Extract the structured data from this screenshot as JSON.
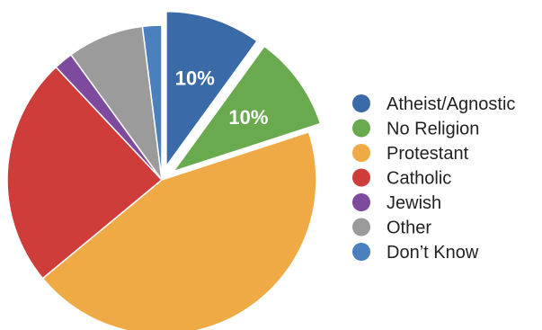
{
  "chart_data": {
    "type": "pie",
    "categories": [
      "Atheist/Agnostic",
      "No Religion",
      "Protestant",
      "Catholic",
      "Jewish",
      "Other",
      "Don't Know"
    ],
    "values": [
      10,
      10,
      44,
      24,
      2,
      8,
      2
    ],
    "colors": [
      "#3b6aa8",
      "#6aaa4f",
      "#efaa45",
      "#cf3d3b",
      "#7e4a9d",
      "#9b9b9b",
      "#4a80bd"
    ],
    "exploded": [
      "Atheist/Agnostic",
      "No Religion"
    ],
    "data_labels": [
      "10%",
      "10%",
      "",
      "",
      "",
      "",
      ""
    ],
    "legend_labels": [
      "Atheist/Agnostic",
      "No Religion",
      "Protestant",
      "Catholic",
      "Jewish",
      "Other",
      "Don’t Know"
    ],
    "legend_position": "right"
  }
}
